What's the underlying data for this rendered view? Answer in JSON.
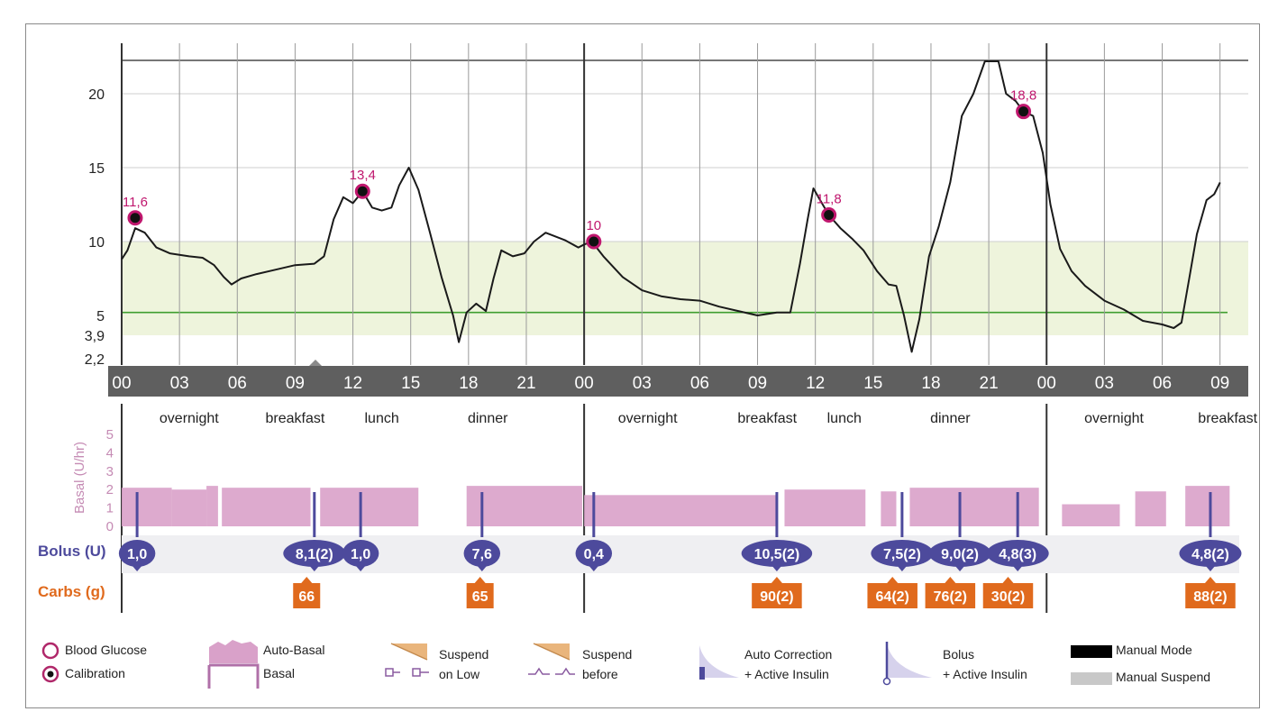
{
  "chart_data": {
    "type": "line",
    "y_ticks": [
      "20",
      "15",
      "10",
      "5",
      "3,9",
      "2,2"
    ],
    "y_tick_values": [
      20,
      15,
      10,
      5,
      3.9,
      2.2
    ],
    "ylim": [
      2.2,
      22.3
    ],
    "x_ticks": [
      "00",
      "03",
      "06",
      "09",
      "12",
      "15",
      "18",
      "21",
      "00",
      "03",
      "06",
      "09",
      "12",
      "15",
      "18",
      "21",
      "00",
      "03",
      "06",
      "09"
    ],
    "x_tick_hours": [
      0,
      3,
      6,
      9,
      12,
      15,
      18,
      21,
      24,
      27,
      30,
      33,
      36,
      39,
      42,
      45,
      48,
      51,
      54,
      57
    ],
    "target_range": [
      3.9,
      10
    ],
    "target_line": 5.2,
    "colors": {
      "glucose_line": "#1a1a1a",
      "target_band": "#eef4dc",
      "target_line": "#3f9e2f",
      "axis_bar": "#5f5f5f",
      "basal": "#d9a1c9",
      "bolus": "#4d4a9c",
      "carbs": "#e06a1d",
      "marker_ring": "#c0176e",
      "bg_label": "#c0176e"
    },
    "glucose_series": [
      [
        0.0,
        8.8
      ],
      [
        0.3,
        9.4
      ],
      [
        0.7,
        10.9
      ],
      [
        1.2,
        10.6
      ],
      [
        1.8,
        9.6
      ],
      [
        2.5,
        9.2
      ],
      [
        3.5,
        9.0
      ],
      [
        4.2,
        8.9
      ],
      [
        4.8,
        8.4
      ],
      [
        5.3,
        7.6
      ],
      [
        5.7,
        7.1
      ],
      [
        6.2,
        7.5
      ],
      [
        7.0,
        7.8
      ],
      [
        8.0,
        8.1
      ],
      [
        9.0,
        8.4
      ],
      [
        10.0,
        8.5
      ],
      [
        10.5,
        9.0
      ],
      [
        11.0,
        11.5
      ],
      [
        11.5,
        13.0
      ],
      [
        12.0,
        12.6
      ],
      [
        12.5,
        13.4
      ],
      [
        13.0,
        12.3
      ],
      [
        13.5,
        12.1
      ],
      [
        14.0,
        12.3
      ],
      [
        14.4,
        13.8
      ],
      [
        14.9,
        15.0
      ],
      [
        15.4,
        13.5
      ],
      [
        16.0,
        10.6
      ],
      [
        16.6,
        7.6
      ],
      [
        17.2,
        5.0
      ],
      [
        17.5,
        3.4
      ],
      [
        17.9,
        5.2
      ],
      [
        18.4,
        5.8
      ],
      [
        18.9,
        5.3
      ],
      [
        19.3,
        7.5
      ],
      [
        19.7,
        9.4
      ],
      [
        20.3,
        9.0
      ],
      [
        20.9,
        9.2
      ],
      [
        21.4,
        10.0
      ],
      [
        22.0,
        10.6
      ],
      [
        23.0,
        10.1
      ],
      [
        23.7,
        9.6
      ],
      [
        24.0,
        9.8
      ],
      [
        24.4,
        10.0
      ],
      [
        25.0,
        9.0
      ],
      [
        26.0,
        7.6
      ],
      [
        27.0,
        6.7
      ],
      [
        28.0,
        6.3
      ],
      [
        29.0,
        6.1
      ],
      [
        30.0,
        6.0
      ],
      [
        31.0,
        5.6
      ],
      [
        32.0,
        5.3
      ],
      [
        33.0,
        5.0
      ],
      [
        34.0,
        5.2
      ],
      [
        34.7,
        5.2
      ],
      [
        35.2,
        8.5
      ],
      [
        35.6,
        11.5
      ],
      [
        35.9,
        13.6
      ],
      [
        36.2,
        12.9
      ],
      [
        36.7,
        11.8
      ],
      [
        37.3,
        10.9
      ],
      [
        37.9,
        10.2
      ],
      [
        38.5,
        9.4
      ],
      [
        39.2,
        8.0
      ],
      [
        39.8,
        7.1
      ],
      [
        40.2,
        7.0
      ],
      [
        40.6,
        5.0
      ],
      [
        41.0,
        2.7
      ],
      [
        41.4,
        4.8
      ],
      [
        41.9,
        9.0
      ],
      [
        42.4,
        11.0
      ],
      [
        43.0,
        14.0
      ],
      [
        43.6,
        18.5
      ],
      [
        44.2,
        20.0
      ],
      [
        44.8,
        22.3
      ],
      [
        45.5,
        22.3
      ],
      [
        45.9,
        20.0
      ],
      [
        46.4,
        19.5
      ],
      [
        46.8,
        18.8
      ],
      [
        47.3,
        18.5
      ],
      [
        47.8,
        16.0
      ],
      [
        48.2,
        12.5
      ],
      [
        48.7,
        9.5
      ],
      [
        49.3,
        8.0
      ],
      [
        50.0,
        7.0
      ],
      [
        51.0,
        6.0
      ],
      [
        52.0,
        5.4
      ],
      [
        53.0,
        4.7
      ],
      [
        54.0,
        4.5
      ],
      [
        54.6,
        4.3
      ],
      [
        55.0,
        4.6
      ],
      [
        55.4,
        7.5
      ],
      [
        55.8,
        10.5
      ],
      [
        56.3,
        12.8
      ],
      [
        56.7,
        13.2
      ],
      [
        57.0,
        14.0
      ]
    ],
    "bg_readings": [
      {
        "hour": 0.7,
        "value": 11.6,
        "label": "11,6"
      },
      {
        "hour": 12.5,
        "value": 13.4,
        "label": "13,4"
      },
      {
        "hour": 24.5,
        "value": 10.0,
        "label": "10"
      },
      {
        "hour": 36.7,
        "value": 11.8,
        "label": "11,8"
      },
      {
        "hour": 46.8,
        "value": 18.8,
        "label": "18,8"
      }
    ],
    "meal_labels": [
      {
        "hour": 3.5,
        "text": "overnight"
      },
      {
        "hour": 9.0,
        "text": "breakfast"
      },
      {
        "hour": 13.5,
        "text": "lunch"
      },
      {
        "hour": 19.0,
        "text": "dinner"
      },
      {
        "hour": 27.3,
        "text": "overnight"
      },
      {
        "hour": 33.5,
        "text": "breakfast"
      },
      {
        "hour": 37.5,
        "text": "lunch"
      },
      {
        "hour": 43.0,
        "text": "dinner"
      },
      {
        "hour": 51.5,
        "text": "overnight"
      },
      {
        "hour": 57.4,
        "text": "breakfast"
      }
    ],
    "basal_ylabel": "Basal (U/hr)",
    "basal_ticks": [
      "5",
      "4",
      "3",
      "2",
      "1",
      "0"
    ],
    "basal_ylim": [
      0,
      5
    ],
    "bolus_label": "Bolus (U)",
    "carbs_label": "Carbs (g)",
    "boluses": [
      {
        "hour": 0.8,
        "label": "1,0"
      },
      {
        "hour": 10.0,
        "label": "8,1(2)"
      },
      {
        "hour": 12.4,
        "label": "1,0"
      },
      {
        "hour": 18.7,
        "label": "7,6"
      },
      {
        "hour": 24.5,
        "label": "0,4"
      },
      {
        "hour": 34.0,
        "label": "10,5(2)"
      },
      {
        "hour": 40.5,
        "label": "7,5(2)"
      },
      {
        "hour": 43.5,
        "label": "9,0(2)"
      },
      {
        "hour": 46.5,
        "label": "4,8(3)"
      },
      {
        "hour": 56.5,
        "label": "4,8(2)"
      }
    ],
    "carbs": [
      {
        "hour": 9.6,
        "label": "66"
      },
      {
        "hour": 18.6,
        "label": "65"
      },
      {
        "hour": 34.0,
        "label": "90(2)"
      },
      {
        "hour": 40.0,
        "label": "64(2)"
      },
      {
        "hour": 43.0,
        "label": "76(2)"
      },
      {
        "hour": 46.0,
        "label": "30(2)"
      },
      {
        "hour": 56.5,
        "label": "88(2)"
      }
    ]
  },
  "legend": {
    "blood_glucose": "Blood Glucose",
    "calibration": "Calibration",
    "auto_basal": "Auto-Basal",
    "basal": "Basal",
    "suspend_on_low_1": "Suspend",
    "suspend_on_low_2": "on Low",
    "suspend_before_1": "Suspend",
    "suspend_before_2": "before",
    "auto_correction_1": "Auto Correction",
    "auto_correction_2": "+ Active Insulin",
    "bolus_1": "Bolus",
    "bolus_2": "+ Active Insulin",
    "manual_mode": "Manual Mode",
    "manual_suspend": "Manual Suspend"
  }
}
